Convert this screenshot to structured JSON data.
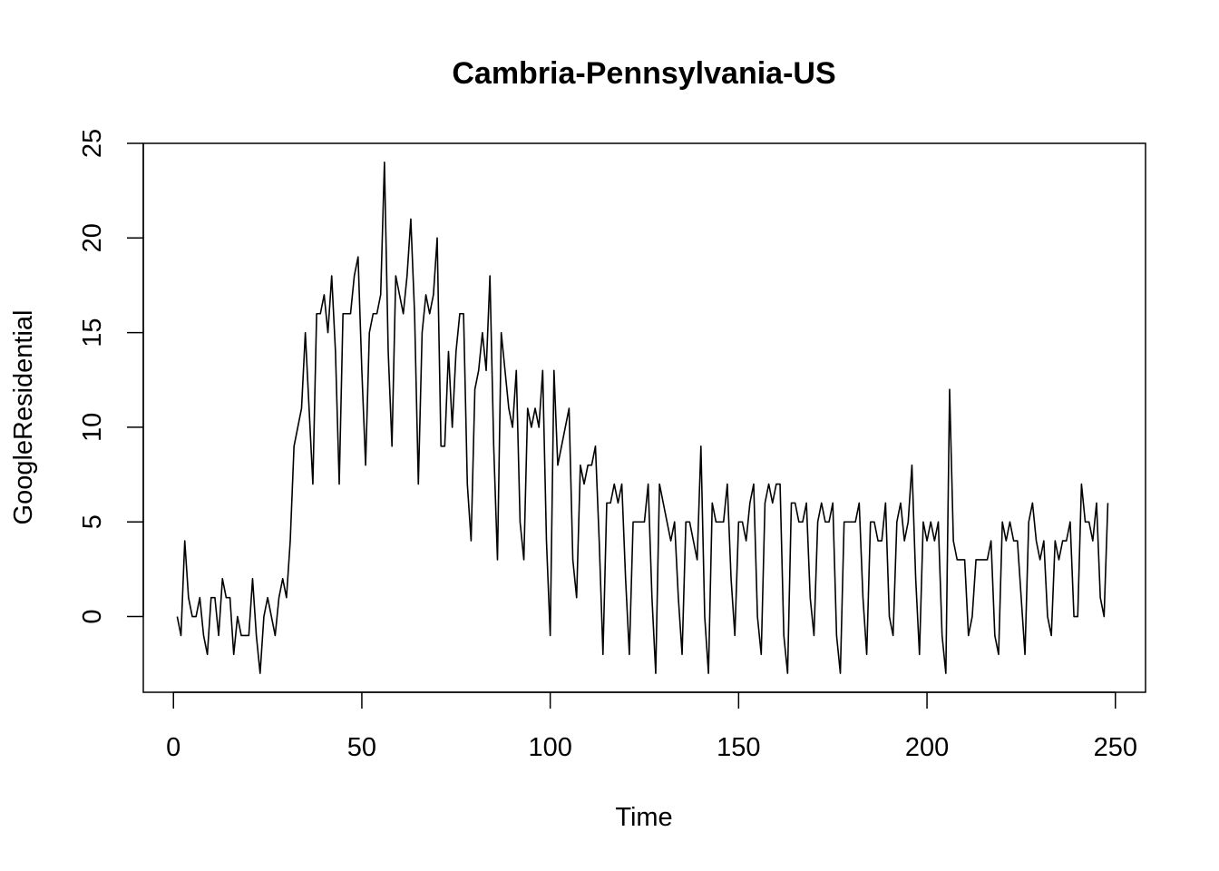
{
  "chart_data": {
    "type": "line",
    "title": "Cambria-Pennsylvania-US",
    "xlabel": "Time",
    "ylabel": "GoogleResidential",
    "xlim": [
      -8,
      258
    ],
    "ylim": [
      -4,
      25
    ],
    "x_ticks": [
      0,
      50,
      100,
      150,
      200,
      250
    ],
    "y_ticks": [
      0,
      5,
      10,
      15,
      20,
      25
    ],
    "x_tick_labels": [
      "0",
      "50",
      "100",
      "150",
      "200",
      "250"
    ],
    "y_tick_labels": [
      "0",
      "5",
      "10",
      "15",
      "20",
      "25"
    ],
    "grid": false,
    "legend": "none",
    "line_color": "#000000",
    "x_start": 1,
    "values": [
      0,
      -1,
      4,
      1,
      0,
      0,
      1,
      -1,
      -2,
      1,
      1,
      -1,
      2,
      1,
      1,
      -2,
      0,
      -1,
      -1,
      -1,
      2,
      -1,
      -3,
      0,
      1,
      0,
      -1,
      1,
      2,
      1,
      4,
      9,
      10,
      11,
      15,
      11,
      7,
      16,
      16,
      17,
      15,
      18,
      14,
      7,
      16,
      16,
      16,
      18,
      19,
      13,
      8,
      15,
      16,
      16,
      17,
      24,
      14,
      9,
      18,
      17,
      16,
      18,
      21,
      16,
      7,
      15,
      17,
      16,
      17,
      20,
      9,
      9,
      14,
      10,
      14,
      16,
      16,
      7,
      4,
      12,
      13,
      15,
      13,
      18,
      9,
      3,
      15,
      13,
      11,
      10,
      13,
      5,
      3,
      11,
      10,
      11,
      10,
      13,
      4,
      -1,
      13,
      8,
      9,
      10,
      11,
      3,
      1,
      8,
      7,
      8,
      8,
      9,
      4,
      -2,
      6,
      6,
      7,
      6,
      7,
      2,
      -2,
      5,
      5,
      5,
      5,
      7,
      1,
      -3,
      7,
      6,
      5,
      4,
      5,
      1,
      -2,
      5,
      5,
      4,
      3,
      9,
      0,
      -3,
      6,
      5,
      5,
      5,
      7,
      2,
      -1,
      5,
      5,
      4,
      6,
      7,
      0,
      -2,
      6,
      7,
      6,
      7,
      7,
      -1,
      -3,
      6,
      6,
      5,
      5,
      6,
      1,
      -1,
      5,
      6,
      5,
      5,
      6,
      -1,
      -3,
      5,
      5,
      5,
      5,
      6,
      1,
      -2,
      5,
      5,
      4,
      4,
      6,
      0,
      -1,
      5,
      6,
      4,
      5,
      8,
      2,
      -2,
      5,
      4,
      5,
      4,
      5,
      -1,
      -3,
      12,
      4,
      3,
      3,
      3,
      -1,
      0,
      3,
      3,
      3,
      3,
      4,
      -1,
      -2,
      5,
      4,
      5,
      4,
      4,
      1,
      -2,
      5,
      6,
      4,
      3,
      4,
      0,
      -1,
      4,
      3,
      4,
      4,
      5,
      0,
      0,
      7,
      5,
      5,
      4,
      6,
      1,
      0,
      6
    ]
  }
}
